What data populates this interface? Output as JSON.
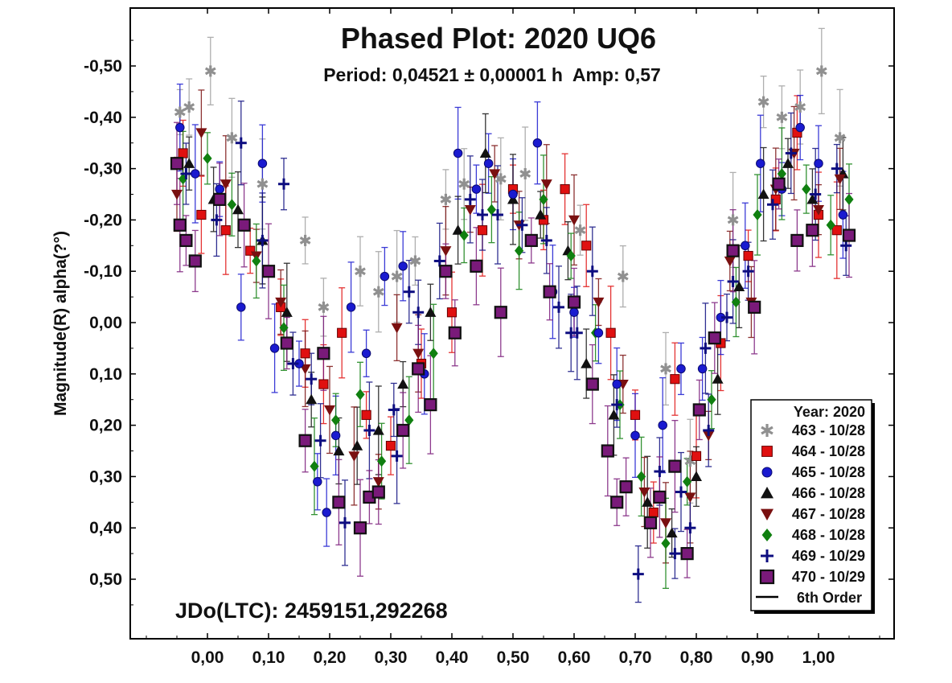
{
  "chart_data": {
    "type": "scatter",
    "title": "Phased Plot: 2020 UQ6",
    "subtitle": "Period: 0,04521 ± 0,00001 h  Amp: 0,57",
    "xlabel": "",
    "ylabel": "Magnitude(R) alpha(?°)",
    "annotation": "JDo(LTC): 2459151,292268",
    "xlim": [
      -0.12,
      1.12
    ],
    "ylim": [
      0.6,
      -0.6
    ],
    "y_inverted": true,
    "grid": false,
    "x_ticks": [
      {
        "value": 0.0,
        "label": "0,00"
      },
      {
        "value": 0.1,
        "label": "0,10"
      },
      {
        "value": 0.2,
        "label": "0,20"
      },
      {
        "value": 0.3,
        "label": "0,30"
      },
      {
        "value": 0.4,
        "label": "0,40"
      },
      {
        "value": 0.5,
        "label": "0,50"
      },
      {
        "value": 0.6,
        "label": "0,60"
      },
      {
        "value": 0.7,
        "label": "0,70"
      },
      {
        "value": 0.8,
        "label": "0,80"
      },
      {
        "value": 0.9,
        "label": "0,90"
      },
      {
        "value": 1.0,
        "label": "1,00"
      }
    ],
    "y_ticks": [
      {
        "value": -0.5,
        "label": "-0,50"
      },
      {
        "value": -0.4,
        "label": "-0,40"
      },
      {
        "value": -0.3,
        "label": "-0,30"
      },
      {
        "value": -0.2,
        "label": "-0,20"
      },
      {
        "value": -0.1,
        "label": "-0,10"
      },
      {
        "value": 0.0,
        "label": "0,00"
      },
      {
        "value": 0.1,
        "label": "0,10"
      },
      {
        "value": 0.2,
        "label": "0,20"
      },
      {
        "value": 0.3,
        "label": "0,30"
      },
      {
        "value": 0.4,
        "label": "0,40"
      },
      {
        "value": 0.5,
        "label": "0,50"
      }
    ],
    "legend": {
      "title": "Year: 2020",
      "placement": "bottom-right",
      "fit_label": "6th Order"
    },
    "series": [
      {
        "name": "463 - 10/28",
        "marker": "asterisk",
        "color": "#909090",
        "points": [
          [
            -0.045,
            -0.41
          ],
          [
            -0.03,
            -0.42
          ],
          [
            0.005,
            -0.49
          ],
          [
            0.04,
            -0.36
          ],
          [
            0.09,
            -0.27
          ],
          [
            0.16,
            -0.16
          ],
          [
            0.19,
            -0.03
          ],
          [
            0.25,
            -0.1
          ],
          [
            0.28,
            -0.06
          ],
          [
            0.31,
            -0.09
          ],
          [
            0.34,
            -0.12
          ],
          [
            0.39,
            -0.24
          ],
          [
            0.42,
            -0.27
          ],
          [
            0.48,
            -0.28
          ],
          [
            0.52,
            -0.29
          ],
          [
            0.61,
            -0.18
          ],
          [
            0.68,
            -0.09
          ],
          [
            0.75,
            0.09
          ],
          [
            0.79,
            0.27
          ],
          [
            0.86,
            -0.2
          ],
          [
            0.91,
            -0.43
          ],
          [
            0.94,
            -0.4
          ],
          [
            0.97,
            -0.42
          ],
          [
            1.005,
            -0.49
          ],
          [
            1.035,
            -0.36
          ]
        ]
      },
      {
        "name": "464 - 10/28",
        "marker": "square",
        "color": "#e01010",
        "points": [
          [
            -0.04,
            -0.33
          ],
          [
            -0.01,
            -0.21
          ],
          [
            0.03,
            -0.18
          ],
          [
            0.07,
            -0.14
          ],
          [
            0.12,
            -0.03
          ],
          [
            0.16,
            0.06
          ],
          [
            0.19,
            0.12
          ],
          [
            0.22,
            0.02
          ],
          [
            0.26,
            0.18
          ],
          [
            0.3,
            0.24
          ],
          [
            0.35,
            0.08
          ],
          [
            0.4,
            -0.02
          ],
          [
            0.45,
            -0.18
          ],
          [
            0.5,
            -0.26
          ],
          [
            0.55,
            -0.2
          ],
          [
            0.585,
            -0.26
          ],
          [
            0.62,
            -0.15
          ],
          [
            0.66,
            0.02
          ],
          [
            0.7,
            0.18
          ],
          [
            0.73,
            0.37
          ],
          [
            0.765,
            0.11
          ],
          [
            0.8,
            0.26
          ],
          [
            0.84,
            0.04
          ],
          [
            0.885,
            -0.13
          ],
          [
            0.93,
            -0.24
          ],
          [
            0.965,
            -0.37
          ],
          [
            1.0,
            -0.21
          ],
          [
            1.03,
            -0.18
          ]
        ]
      },
      {
        "name": "465 - 10/28",
        "marker": "circle",
        "color": "#1a1ad0",
        "points": [
          [
            -0.045,
            -0.38
          ],
          [
            -0.02,
            -0.29
          ],
          [
            0.02,
            -0.26
          ],
          [
            0.055,
            -0.03
          ],
          [
            0.09,
            -0.31
          ],
          [
            0.11,
            0.05
          ],
          [
            0.15,
            0.08
          ],
          [
            0.18,
            0.31
          ],
          [
            0.195,
            0.37
          ],
          [
            0.21,
            0.22
          ],
          [
            0.235,
            -0.03
          ],
          [
            0.26,
            0.06
          ],
          [
            0.29,
            -0.09
          ],
          [
            0.32,
            -0.11
          ],
          [
            0.355,
            0.1
          ],
          [
            0.41,
            -0.33
          ],
          [
            0.44,
            -0.26
          ],
          [
            0.46,
            -0.31
          ],
          [
            0.5,
            -0.25
          ],
          [
            0.54,
            -0.35
          ],
          [
            0.565,
            -0.06
          ],
          [
            0.6,
            -0.02
          ],
          [
            0.64,
            0.02
          ],
          [
            0.67,
            0.12
          ],
          [
            0.7,
            0.22
          ],
          [
            0.745,
            0.2
          ],
          [
            0.775,
            0.09
          ],
          [
            0.81,
            0.09
          ],
          [
            0.84,
            -0.01
          ],
          [
            0.88,
            -0.15
          ],
          [
            0.905,
            -0.31
          ],
          [
            0.94,
            -0.26
          ],
          [
            0.97,
            -0.38
          ],
          [
            1.0,
            -0.31
          ],
          [
            1.04,
            -0.21
          ]
        ]
      },
      {
        "name": "466 - 10/28",
        "marker": "triangle-up",
        "color": "#111111",
        "points": [
          [
            -0.03,
            -0.31
          ],
          [
            0.01,
            -0.24
          ],
          [
            0.05,
            -0.22
          ],
          [
            0.09,
            -0.16
          ],
          [
            0.13,
            -0.02
          ],
          [
            0.17,
            0.15
          ],
          [
            0.215,
            0.25
          ],
          [
            0.245,
            0.24
          ],
          [
            0.28,
            0.21
          ],
          [
            0.32,
            0.12
          ],
          [
            0.365,
            -0.02
          ],
          [
            0.41,
            -0.18
          ],
          [
            0.455,
            -0.33
          ],
          [
            0.5,
            -0.24
          ],
          [
            0.545,
            -0.21
          ],
          [
            0.59,
            -0.14
          ],
          [
            0.62,
            0.08
          ],
          [
            0.665,
            0.18
          ],
          [
            0.72,
            0.35
          ],
          [
            0.76,
            0.41
          ],
          [
            0.8,
            0.3
          ],
          [
            0.835,
            0.11
          ],
          [
            0.87,
            -0.07
          ],
          [
            0.91,
            -0.25
          ],
          [
            0.95,
            -0.31
          ],
          [
            0.99,
            -0.24
          ],
          [
            1.04,
            -0.29
          ]
        ]
      },
      {
        "name": "467 - 10/28",
        "marker": "triangle-down",
        "color": "#7a1010",
        "points": [
          [
            -0.05,
            -0.25
          ],
          [
            -0.01,
            -0.37
          ],
          [
            0.03,
            -0.27
          ],
          [
            0.08,
            -0.13
          ],
          [
            0.12,
            -0.04
          ],
          [
            0.16,
            0.09
          ],
          [
            0.2,
            0.17
          ],
          [
            0.24,
            0.26
          ],
          [
            0.28,
            0.31
          ],
          [
            0.31,
            0.01
          ],
          [
            0.345,
            0.06
          ],
          [
            0.39,
            -0.14
          ],
          [
            0.43,
            -0.22
          ],
          [
            0.47,
            -0.29
          ],
          [
            0.51,
            -0.19
          ],
          [
            0.555,
            -0.27
          ],
          [
            0.6,
            -0.2
          ],
          [
            0.64,
            -0.04
          ],
          [
            0.68,
            0.12
          ],
          [
            0.715,
            0.33
          ],
          [
            0.75,
            0.39
          ],
          [
            0.79,
            0.34
          ],
          [
            0.82,
            0.22
          ],
          [
            0.855,
            -0.12
          ],
          [
            0.89,
            -0.04
          ],
          [
            0.93,
            -0.26
          ],
          [
            0.96,
            -0.33
          ],
          [
            1.0,
            -0.22
          ],
          [
            1.035,
            -0.28
          ]
        ]
      },
      {
        "name": "468 - 10/28",
        "marker": "diamond",
        "color": "#108010",
        "points": [
          [
            -0.04,
            -0.28
          ],
          [
            0.0,
            -0.32
          ],
          [
            0.04,
            -0.23
          ],
          [
            0.08,
            -0.12
          ],
          [
            0.125,
            0.01
          ],
          [
            0.175,
            0.28
          ],
          [
            0.21,
            0.19
          ],
          [
            0.25,
            0.14
          ],
          [
            0.285,
            0.27
          ],
          [
            0.33,
            0.19
          ],
          [
            0.37,
            0.06
          ],
          [
            0.42,
            -0.17
          ],
          [
            0.465,
            -0.22
          ],
          [
            0.51,
            -0.14
          ],
          [
            0.55,
            -0.24
          ],
          [
            0.595,
            -0.13
          ],
          [
            0.635,
            0.02
          ],
          [
            0.675,
            0.16
          ],
          [
            0.71,
            0.3
          ],
          [
            0.75,
            0.43
          ],
          [
            0.785,
            0.31
          ],
          [
            0.825,
            0.15
          ],
          [
            0.865,
            -0.04
          ],
          [
            0.9,
            -0.21
          ],
          [
            0.94,
            -0.29
          ],
          [
            0.98,
            -0.26
          ],
          [
            1.02,
            -0.19
          ],
          [
            1.05,
            -0.24
          ]
        ]
      },
      {
        "name": "469 - 10/29",
        "marker": "plus",
        "color": "#0d0d80",
        "points": [
          [
            -0.035,
            -0.29
          ],
          [
            0.015,
            -0.2
          ],
          [
            0.055,
            -0.35
          ],
          [
            0.09,
            -0.16
          ],
          [
            0.125,
            -0.27
          ],
          [
            0.14,
            0.08
          ],
          [
            0.185,
            0.23
          ],
          [
            0.225,
            0.39
          ],
          [
            0.265,
            0.21
          ],
          [
            0.305,
            0.17
          ],
          [
            0.345,
            -0.02
          ],
          [
            0.38,
            -0.12
          ],
          [
            0.43,
            -0.24
          ],
          [
            0.475,
            -0.21
          ],
          [
            0.515,
            -0.19
          ],
          [
            0.555,
            -0.16
          ],
          [
            0.595,
            0.02
          ],
          [
            0.63,
            -0.1
          ],
          [
            0.67,
            0.16
          ],
          [
            0.705,
            0.49
          ],
          [
            0.74,
            0.29
          ],
          [
            0.775,
            0.33
          ],
          [
            0.815,
            0.05
          ],
          [
            0.85,
            -0.01
          ],
          [
            0.885,
            -0.1
          ],
          [
            0.925,
            -0.23
          ],
          [
            0.955,
            -0.33
          ],
          [
            0.995,
            -0.25
          ],
          [
            1.03,
            -0.3
          ],
          [
            1.045,
            -0.15
          ],
          [
            0.45,
            -0.21
          ],
          [
            0.575,
            -0.03
          ],
          [
            0.605,
            0.02
          ],
          [
            0.765,
            0.45
          ],
          [
            0.79,
            0.4
          ],
          [
            0.82,
            0.21
          ],
          [
            0.86,
            -0.08
          ],
          [
            0.31,
            0.26
          ],
          [
            0.17,
            0.11
          ],
          [
            0.33,
            -0.06
          ]
        ]
      },
      {
        "name": "470 - 10/29",
        "marker": "square-filled",
        "color": "#7a1a7a",
        "points": [
          [
            -0.05,
            -0.31
          ],
          [
            -0.045,
            -0.19
          ],
          [
            -0.035,
            -0.16
          ],
          [
            -0.02,
            -0.12
          ],
          [
            0.02,
            -0.24
          ],
          [
            0.06,
            -0.19
          ],
          [
            0.1,
            -0.1
          ],
          [
            0.13,
            0.04
          ],
          [
            0.16,
            0.23
          ],
          [
            0.19,
            0.06
          ],
          [
            0.215,
            0.35
          ],
          [
            0.25,
            0.4
          ],
          [
            0.265,
            0.34
          ],
          [
            0.28,
            0.33
          ],
          [
            0.32,
            0.21
          ],
          [
            0.345,
            0.09
          ],
          [
            0.365,
            0.16
          ],
          [
            0.39,
            -0.1
          ],
          [
            0.405,
            0.02
          ],
          [
            0.44,
            -0.11
          ],
          [
            0.48,
            -0.02
          ],
          [
            0.53,
            -0.16
          ],
          [
            0.56,
            -0.06
          ],
          [
            0.6,
            -0.04
          ],
          [
            0.63,
            0.12
          ],
          [
            0.655,
            0.25
          ],
          [
            0.67,
            0.35
          ],
          [
            0.685,
            0.32
          ],
          [
            0.725,
            0.39
          ],
          [
            0.74,
            0.34
          ],
          [
            0.765,
            0.28
          ],
          [
            0.785,
            0.45
          ],
          [
            0.805,
            0.17
          ],
          [
            0.83,
            0.03
          ],
          [
            0.86,
            -0.14
          ],
          [
            0.895,
            -0.03
          ],
          [
            0.935,
            -0.27
          ],
          [
            0.965,
            -0.16
          ],
          [
            0.99,
            -0.18
          ],
          [
            1.05,
            -0.17
          ]
        ]
      }
    ],
    "fit": {
      "name": "6th Order",
      "color": "#000000"
    }
  }
}
